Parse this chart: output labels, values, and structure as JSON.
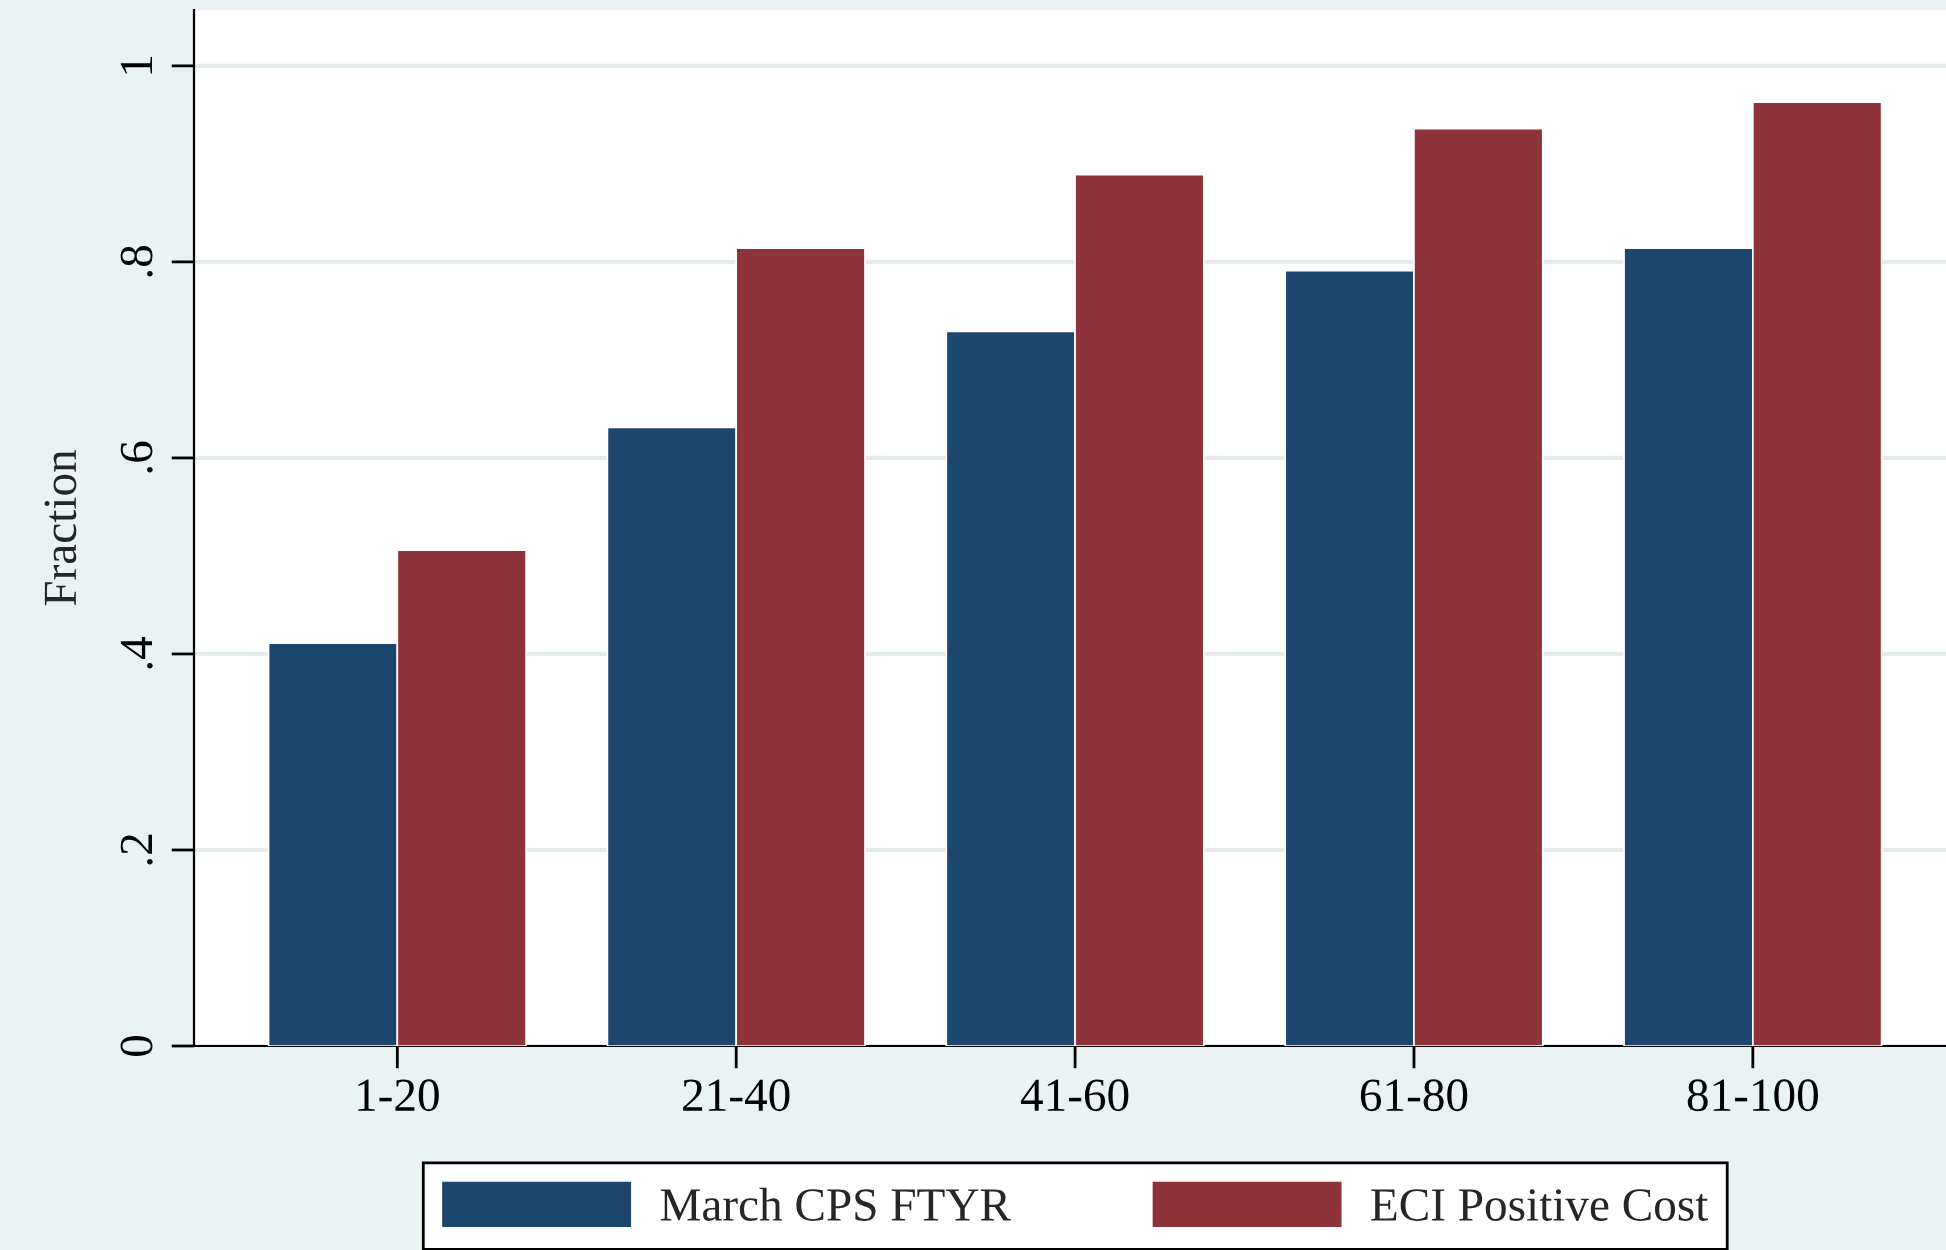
{
  "chart_data": {
    "type": "bar",
    "ylabel": "Fraction",
    "categories": [
      "1-20",
      "21-40",
      "41-60",
      "61-80",
      "81-100"
    ],
    "series": [
      {
        "name": "March CPS FTYR",
        "color": "#1d466e",
        "values": [
          0.411,
          0.631,
          0.729,
          0.791,
          0.814
        ]
      },
      {
        "name": "ECI Positive Cost",
        "color": "#8e333a",
        "values": [
          0.506,
          0.814,
          0.889,
          0.936,
          0.963
        ]
      }
    ],
    "ylim": [
      0,
      1.057
    ],
    "yticks": [
      {
        "value": 0,
        "label": "0"
      },
      {
        "value": 0.2,
        "label": ".2"
      },
      {
        "value": 0.4,
        "label": ".4"
      },
      {
        "value": 0.6,
        "label": ".6"
      },
      {
        "value": 0.8,
        "label": ".8"
      },
      {
        "value": 1,
        "label": "1"
      }
    ],
    "grid": "y",
    "legend": "bottom"
  }
}
